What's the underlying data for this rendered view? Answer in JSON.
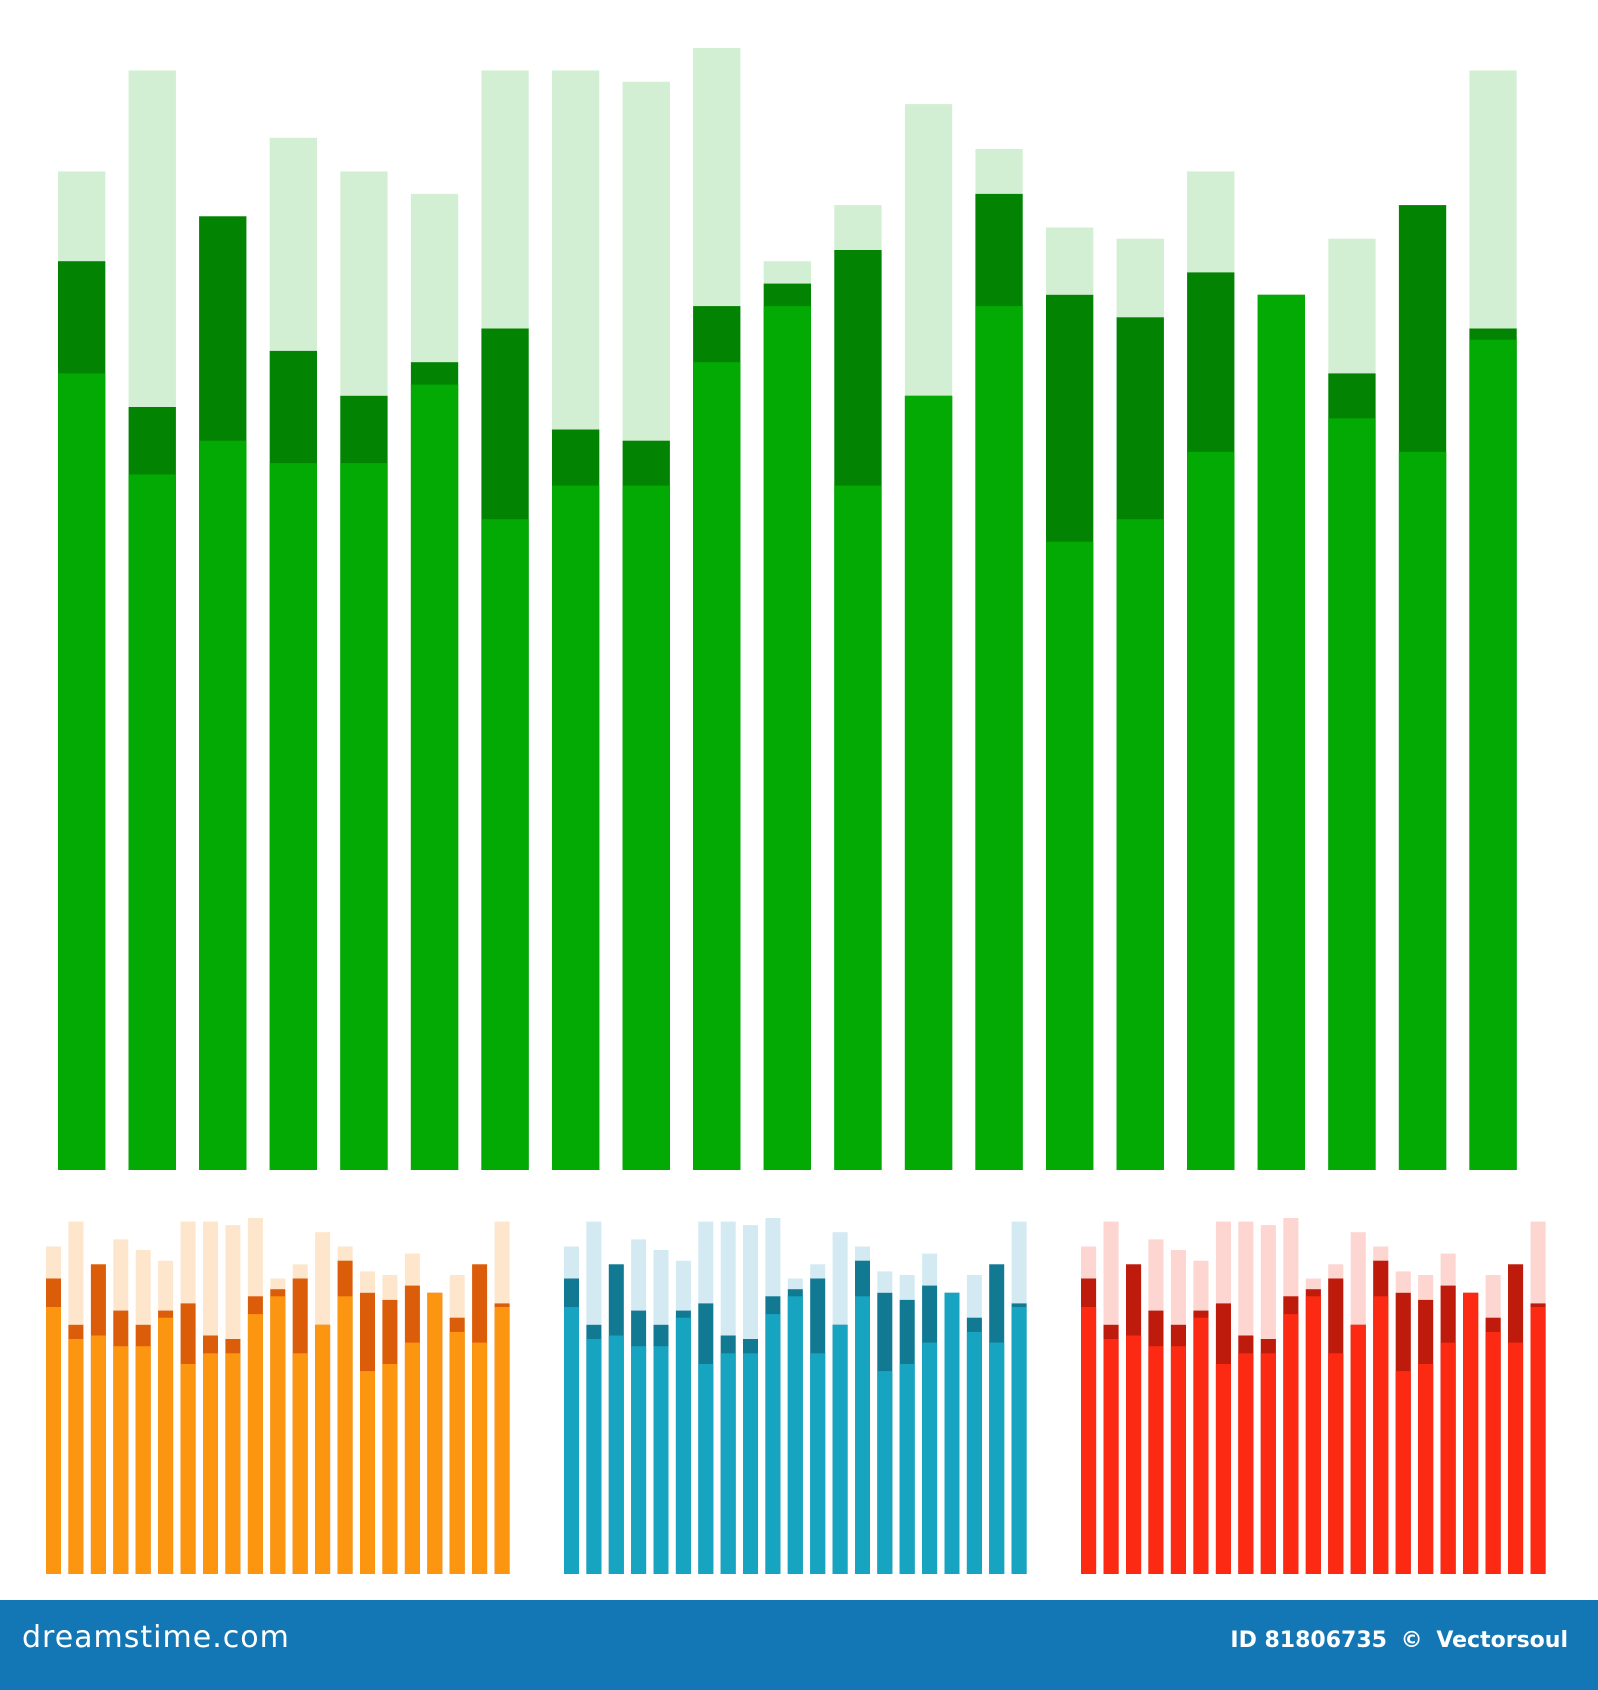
{
  "footer": {
    "brand": "dreamstime.com",
    "id_label": "ID 81806735",
    "copyright_sign": "©",
    "author": "Vectorsoul"
  },
  "panels": [
    {
      "name": "green-equalizer",
      "colors": {
        "light": "#d2efd4",
        "dark": "#028402",
        "main": "#03aa04"
      },
      "bars": [
        {
          "peak": 0.89,
          "dark": 0.81,
          "main": 0.71
        },
        {
          "peak": 0.98,
          "dark": 0.68,
          "main": 0.62
        },
        {
          "peak": 0.85,
          "dark": 0.85,
          "main": 0.65
        },
        {
          "peak": 0.92,
          "dark": 0.73,
          "main": 0.63
        },
        {
          "peak": 0.89,
          "dark": 0.69,
          "main": 0.63
        },
        {
          "peak": 0.87,
          "dark": 0.72,
          "main": 0.7
        },
        {
          "peak": 0.98,
          "dark": 0.75,
          "main": 0.58
        },
        {
          "peak": 0.98,
          "dark": 0.66,
          "main": 0.61
        },
        {
          "peak": 0.97,
          "dark": 0.65,
          "main": 0.61
        },
        {
          "peak": 1.0,
          "dark": 0.77,
          "main": 0.72
        },
        {
          "peak": 0.81,
          "dark": 0.79,
          "main": 0.77
        },
        {
          "peak": 0.86,
          "dark": 0.82,
          "main": 0.61
        },
        {
          "peak": 0.95,
          "dark": 0.69,
          "main": 0.69
        },
        {
          "peak": 0.91,
          "dark": 0.87,
          "main": 0.77
        },
        {
          "peak": 0.84,
          "dark": 0.78,
          "main": 0.56
        },
        {
          "peak": 0.83,
          "dark": 0.76,
          "main": 0.58
        },
        {
          "peak": 0.89,
          "dark": 0.8,
          "main": 0.64
        },
        {
          "peak": 0.78,
          "dark": 0.78,
          "main": 0.78
        },
        {
          "peak": 0.83,
          "dark": 0.71,
          "main": 0.67
        },
        {
          "peak": 0.86,
          "dark": 0.86,
          "main": 0.64
        },
        {
          "peak": 0.98,
          "dark": 0.75,
          "main": 0.74
        }
      ]
    },
    {
      "name": "orange-equalizer",
      "colors": {
        "light": "#fde6cc",
        "dark": "#db5c09",
        "main": "#fc9610"
      },
      "bars": [
        {
          "peak": 0.92,
          "dark": 0.83,
          "main": 0.75
        },
        {
          "peak": 0.99,
          "dark": 0.7,
          "main": 0.66
        },
        {
          "peak": 0.87,
          "dark": 0.87,
          "main": 0.67
        },
        {
          "peak": 0.94,
          "dark": 0.74,
          "main": 0.64
        },
        {
          "peak": 0.91,
          "dark": 0.7,
          "main": 0.64
        },
        {
          "peak": 0.88,
          "dark": 0.74,
          "main": 0.72
        },
        {
          "peak": 0.99,
          "dark": 0.76,
          "main": 0.59
        },
        {
          "peak": 0.99,
          "dark": 0.67,
          "main": 0.62
        },
        {
          "peak": 0.98,
          "dark": 0.66,
          "main": 0.62
        },
        {
          "peak": 1.0,
          "dark": 0.78,
          "main": 0.73
        },
        {
          "peak": 0.83,
          "dark": 0.8,
          "main": 0.78
        },
        {
          "peak": 0.87,
          "dark": 0.83,
          "main": 0.62
        },
        {
          "peak": 0.96,
          "dark": 0.7,
          "main": 0.7
        },
        {
          "peak": 0.92,
          "dark": 0.88,
          "main": 0.78
        },
        {
          "peak": 0.85,
          "dark": 0.79,
          "main": 0.57
        },
        {
          "peak": 0.84,
          "dark": 0.77,
          "main": 0.59
        },
        {
          "peak": 0.9,
          "dark": 0.81,
          "main": 0.65
        },
        {
          "peak": 0.79,
          "dark": 0.79,
          "main": 0.79
        },
        {
          "peak": 0.84,
          "dark": 0.72,
          "main": 0.68
        },
        {
          "peak": 0.87,
          "dark": 0.87,
          "main": 0.65
        },
        {
          "peak": 0.99,
          "dark": 0.76,
          "main": 0.75
        }
      ]
    },
    {
      "name": "blue-equalizer",
      "colors": {
        "light": "#d3eaf2",
        "dark": "#117a92",
        "main": "#17a4c1"
      },
      "bars": [
        {
          "peak": 0.92,
          "dark": 0.83,
          "main": 0.75
        },
        {
          "peak": 0.99,
          "dark": 0.7,
          "main": 0.66
        },
        {
          "peak": 0.87,
          "dark": 0.87,
          "main": 0.67
        },
        {
          "peak": 0.94,
          "dark": 0.74,
          "main": 0.64
        },
        {
          "peak": 0.91,
          "dark": 0.7,
          "main": 0.64
        },
        {
          "peak": 0.88,
          "dark": 0.74,
          "main": 0.72
        },
        {
          "peak": 0.99,
          "dark": 0.76,
          "main": 0.59
        },
        {
          "peak": 0.99,
          "dark": 0.67,
          "main": 0.62
        },
        {
          "peak": 0.98,
          "dark": 0.66,
          "main": 0.62
        },
        {
          "peak": 1.0,
          "dark": 0.78,
          "main": 0.73
        },
        {
          "peak": 0.83,
          "dark": 0.8,
          "main": 0.78
        },
        {
          "peak": 0.87,
          "dark": 0.83,
          "main": 0.62
        },
        {
          "peak": 0.96,
          "dark": 0.7,
          "main": 0.7
        },
        {
          "peak": 0.92,
          "dark": 0.88,
          "main": 0.78
        },
        {
          "peak": 0.85,
          "dark": 0.79,
          "main": 0.57
        },
        {
          "peak": 0.84,
          "dark": 0.77,
          "main": 0.59
        },
        {
          "peak": 0.9,
          "dark": 0.81,
          "main": 0.65
        },
        {
          "peak": 0.79,
          "dark": 0.79,
          "main": 0.79
        },
        {
          "peak": 0.84,
          "dark": 0.72,
          "main": 0.68
        },
        {
          "peak": 0.87,
          "dark": 0.87,
          "main": 0.65
        },
        {
          "peak": 0.99,
          "dark": 0.76,
          "main": 0.75
        }
      ]
    },
    {
      "name": "red-equalizer",
      "colors": {
        "light": "#fdd6d2",
        "dark": "#be1b0c",
        "main": "#fc2a12"
      },
      "bars": [
        {
          "peak": 0.92,
          "dark": 0.83,
          "main": 0.75
        },
        {
          "peak": 0.99,
          "dark": 0.7,
          "main": 0.66
        },
        {
          "peak": 0.87,
          "dark": 0.87,
          "main": 0.67
        },
        {
          "peak": 0.94,
          "dark": 0.74,
          "main": 0.64
        },
        {
          "peak": 0.91,
          "dark": 0.7,
          "main": 0.64
        },
        {
          "peak": 0.88,
          "dark": 0.74,
          "main": 0.72
        },
        {
          "peak": 0.99,
          "dark": 0.76,
          "main": 0.59
        },
        {
          "peak": 0.99,
          "dark": 0.67,
          "main": 0.62
        },
        {
          "peak": 0.98,
          "dark": 0.66,
          "main": 0.62
        },
        {
          "peak": 1.0,
          "dark": 0.78,
          "main": 0.73
        },
        {
          "peak": 0.83,
          "dark": 0.8,
          "main": 0.78
        },
        {
          "peak": 0.87,
          "dark": 0.83,
          "main": 0.62
        },
        {
          "peak": 0.96,
          "dark": 0.7,
          "main": 0.7
        },
        {
          "peak": 0.92,
          "dark": 0.88,
          "main": 0.78
        },
        {
          "peak": 0.85,
          "dark": 0.79,
          "main": 0.57
        },
        {
          "peak": 0.84,
          "dark": 0.77,
          "main": 0.59
        },
        {
          "peak": 0.9,
          "dark": 0.81,
          "main": 0.65
        },
        {
          "peak": 0.79,
          "dark": 0.79,
          "main": 0.79
        },
        {
          "peak": 0.84,
          "dark": 0.72,
          "main": 0.68
        },
        {
          "peak": 0.87,
          "dark": 0.87,
          "main": 0.65
        },
        {
          "peak": 0.99,
          "dark": 0.76,
          "main": 0.75
        }
      ]
    }
  ]
}
